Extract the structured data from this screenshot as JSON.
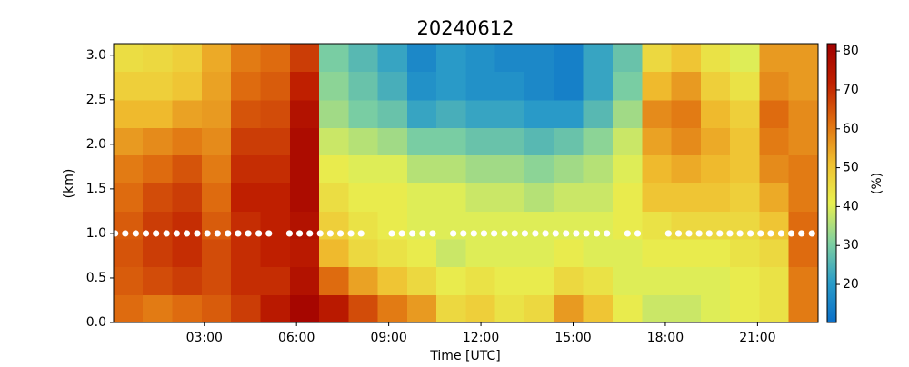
{
  "chart_data": {
    "type": "heatmap",
    "title": "20240612",
    "xlabel": "Time [UTC]",
    "ylabel": "(km)",
    "colorbar_label": "(%)",
    "xlim": [
      0.05,
      22.97
    ],
    "ylim": [
      0,
      3.13
    ],
    "clim": [
      10.2,
      81.9
    ],
    "xticks": [
      {
        "value": 3,
        "label": "03:00"
      },
      {
        "value": 6,
        "label": "06:00"
      },
      {
        "value": 9,
        "label": "09:00"
      },
      {
        "value": 12,
        "label": "12:00"
      },
      {
        "value": 15,
        "label": "15:00"
      },
      {
        "value": 18,
        "label": "18:00"
      },
      {
        "value": 21,
        "label": "21:00"
      }
    ],
    "yticks": [
      {
        "value": 0,
        "label": "0.0"
      },
      0.5,
      {
        "value": 1,
        "label": "1.0"
      },
      1.5,
      {
        "value": 2,
        "label": "2.0"
      },
      2.5,
      {
        "value": 3,
        "label": "3.0"
      }
    ],
    "cticks": [
      20,
      30,
      40,
      50,
      60,
      70,
      80
    ],
    "colormap": [
      "#0a6fc8",
      "#2a9cc8",
      "#7fd0a0",
      "#e8f050",
      "#f0c030",
      "#e07010",
      "#c02000",
      "#a00000"
    ],
    "xbins": [
      0.05,
      1.0,
      1.96,
      2.92,
      3.87,
      4.82,
      5.78,
      6.73,
      7.69,
      8.64,
      9.6,
      10.55,
      11.51,
      12.46,
      13.42,
      14.37,
      15.33,
      16.28,
      17.24,
      18.19,
      19.15,
      20.1,
      21.06,
      22.01,
      22.97
    ],
    "ybins": [
      0,
      0.31,
      0.63,
      0.94,
      1.25,
      1.57,
      1.88,
      2.19,
      2.5,
      2.82,
      3.13
    ],
    "z": [
      [
        62,
        64,
        65,
        64,
        62,
        60,
        56,
        52,
        48,
        45
      ],
      [
        60,
        66,
        68,
        68,
        66,
        62,
        58,
        52,
        48,
        46
      ],
      [
        62,
        68,
        70,
        70,
        68,
        65,
        60,
        55,
        50,
        48
      ],
      [
        64,
        66,
        66,
        64,
        62,
        60,
        58,
        56,
        55,
        54
      ],
      [
        68,
        70,
        70,
        70,
        72,
        70,
        68,
        65,
        62,
        60
      ],
      [
        74,
        70,
        72,
        72,
        72,
        70,
        68,
        66,
        64,
        62
      ],
      [
        80,
        76,
        74,
        76,
        78,
        78,
        78,
        76,
        72,
        68
      ],
      [
        74,
        62,
        52,
        48,
        45,
        42,
        38,
        34,
        32,
        30
      ],
      [
        66,
        55,
        46,
        44,
        42,
        40,
        36,
        30,
        28,
        26
      ],
      [
        60,
        50,
        44,
        42,
        42,
        40,
        34,
        28,
        24,
        22
      ],
      [
        56,
        46,
        42,
        40,
        40,
        36,
        30,
        22,
        18,
        16
      ],
      [
        46,
        42,
        38,
        40,
        40,
        36,
        30,
        24,
        20,
        20
      ],
      [
        48,
        44,
        40,
        40,
        38,
        34,
        28,
        22,
        18,
        18
      ],
      [
        44,
        42,
        40,
        40,
        38,
        34,
        28,
        22,
        18,
        16
      ],
      [
        46,
        42,
        40,
        40,
        36,
        32,
        26,
        20,
        16,
        16
      ],
      [
        56,
        46,
        42,
        40,
        38,
        34,
        28,
        20,
        14,
        14
      ],
      [
        50,
        44,
        40,
        40,
        38,
        36,
        32,
        26,
        22,
        22
      ],
      [
        42,
        40,
        40,
        42,
        42,
        40,
        38,
        34,
        30,
        28
      ],
      [
        38,
        40,
        42,
        44,
        50,
        52,
        55,
        58,
        52,
        46
      ],
      [
        38,
        40,
        42,
        46,
        50,
        54,
        58,
        60,
        56,
        50
      ],
      [
        40,
        40,
        42,
        46,
        50,
        52,
        54,
        52,
        48,
        44
      ],
      [
        42,
        42,
        44,
        46,
        48,
        50,
        50,
        48,
        44,
        40
      ],
      [
        44,
        44,
        46,
        50,
        54,
        58,
        60,
        62,
        58,
        56
      ],
      [
        60,
        60,
        62,
        62,
        60,
        60,
        58,
        58,
        56,
        56
      ]
    ],
    "dots": {
      "color": "#ffffff",
      "y": 1.0,
      "x": [
        0.1,
        0.43,
        0.77,
        1.1,
        1.43,
        1.77,
        2.1,
        2.43,
        2.77,
        3.1,
        3.43,
        3.77,
        4.1,
        4.43,
        4.77,
        5.1,
        5.77,
        6.1,
        6.43,
        6.77,
        7.1,
        7.43,
        7.77,
        8.1,
        9.1,
        9.43,
        9.77,
        10.1,
        10.43,
        11.1,
        11.43,
        11.77,
        12.1,
        12.43,
        12.77,
        13.1,
        13.43,
        13.77,
        14.1,
        14.43,
        14.77,
        15.1,
        15.43,
        15.77,
        16.1,
        16.77,
        17.1,
        18.1,
        18.43,
        18.77,
        19.1,
        19.43,
        19.77,
        20.1,
        20.43,
        20.77,
        21.1,
        21.43,
        21.77,
        22.1,
        22.43,
        22.77
      ]
    }
  }
}
